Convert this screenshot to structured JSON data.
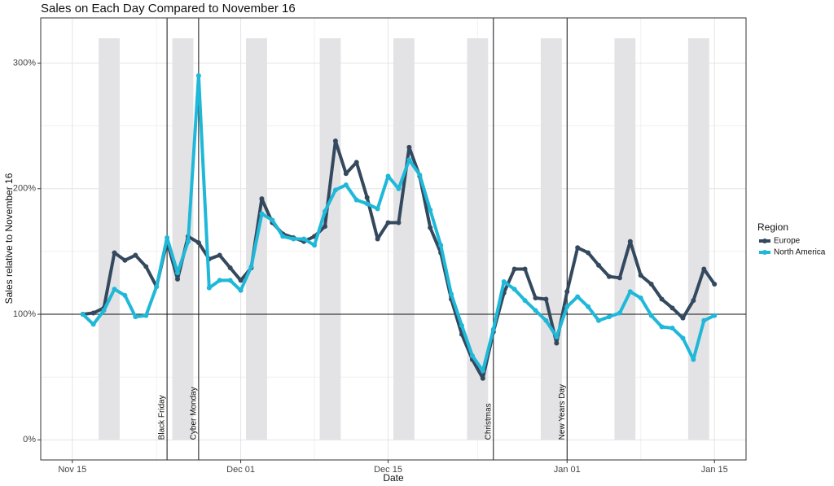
{
  "chart_data": {
    "type": "line",
    "title": "Sales on Each Day Compared to November 16",
    "x_label": "Date",
    "y_label": "Sales relative to November 16",
    "legend_title": "Region",
    "legend_position": "right",
    "grid": true,
    "x": [
      "Nov 16",
      "Nov 17",
      "Nov 18",
      "Nov 19",
      "Nov 20",
      "Nov 21",
      "Nov 22",
      "Nov 23",
      "Nov 24",
      "Nov 25",
      "Nov 26",
      "Nov 27",
      "Nov 28",
      "Nov 29",
      "Nov 30",
      "Dec 01",
      "Dec 02",
      "Dec 03",
      "Dec 04",
      "Dec 05",
      "Dec 06",
      "Dec 07",
      "Dec 08",
      "Dec 09",
      "Dec 10",
      "Dec 11",
      "Dec 12",
      "Dec 13",
      "Dec 14",
      "Dec 15",
      "Dec 16",
      "Dec 17",
      "Dec 18",
      "Dec 19",
      "Dec 20",
      "Dec 21",
      "Dec 22",
      "Dec 23",
      "Dec 24",
      "Dec 25",
      "Dec 26",
      "Dec 27",
      "Dec 28",
      "Dec 29",
      "Dec 30",
      "Dec 31",
      "Jan 01",
      "Jan 02",
      "Jan 03",
      "Jan 04",
      "Jan 05",
      "Jan 06",
      "Jan 07",
      "Jan 08",
      "Jan 09",
      "Jan 10",
      "Jan 11",
      "Jan 12",
      "Jan 13",
      "Jan 14",
      "Jan 15"
    ],
    "series": [
      {
        "name": "Europe",
        "color": "#34495e",
        "values": [
          100,
          101,
          105,
          149,
          143,
          147,
          138,
          122,
          158,
          128,
          162,
          157,
          144,
          147,
          137,
          127,
          137,
          192,
          173,
          164,
          161,
          158,
          162,
          170,
          238,
          212,
          221,
          193,
          160,
          173,
          173,
          233,
          210,
          169,
          149,
          112,
          84,
          64,
          49,
          86,
          117,
          136,
          136,
          113,
          112,
          77,
          118,
          153,
          149,
          139,
          130,
          129,
          158,
          131,
          124,
          112,
          105,
          97,
          111,
          136,
          124
        ]
      },
      {
        "name": "North America",
        "color": "#1fb8d8",
        "values": [
          100,
          92,
          103,
          120,
          115,
          98,
          99,
          122,
          161,
          133,
          158,
          290,
          121,
          127,
          127,
          119,
          138,
          180,
          175,
          162,
          160,
          160,
          155,
          182,
          199,
          203,
          191,
          188,
          184,
          210,
          200,
          223,
          211,
          183,
          155,
          116,
          91,
          67,
          55,
          88,
          126,
          120,
          111,
          103,
          95,
          82,
          106,
          114,
          106,
          95,
          98,
          101,
          118,
          113,
          99,
          90,
          89,
          81,
          64,
          95,
          99
        ]
      }
    ],
    "xlim": [
      "Nov 12",
      "Jan 18"
    ],
    "xticks": [
      "Nov 15",
      "Dec 01",
      "Dec 15",
      "Jan 01",
      "Jan 15"
    ],
    "ylim": [
      -16,
      336
    ],
    "yticks": [
      {
        "value": 0,
        "label": "0%"
      },
      {
        "value": 100,
        "label": "100%"
      },
      {
        "value": 200,
        "label": "200%"
      },
      {
        "value": 300,
        "label": "300%"
      }
    ],
    "hline": 100,
    "events": [
      {
        "x": "Nov 24",
        "label": "Black Friday"
      },
      {
        "x": "Nov 27",
        "label": "Cyber Monday"
      },
      {
        "x": "Dec 25",
        "label": "Christmas"
      },
      {
        "x": "Jan 01",
        "label": "New Years Day"
      }
    ]
  }
}
